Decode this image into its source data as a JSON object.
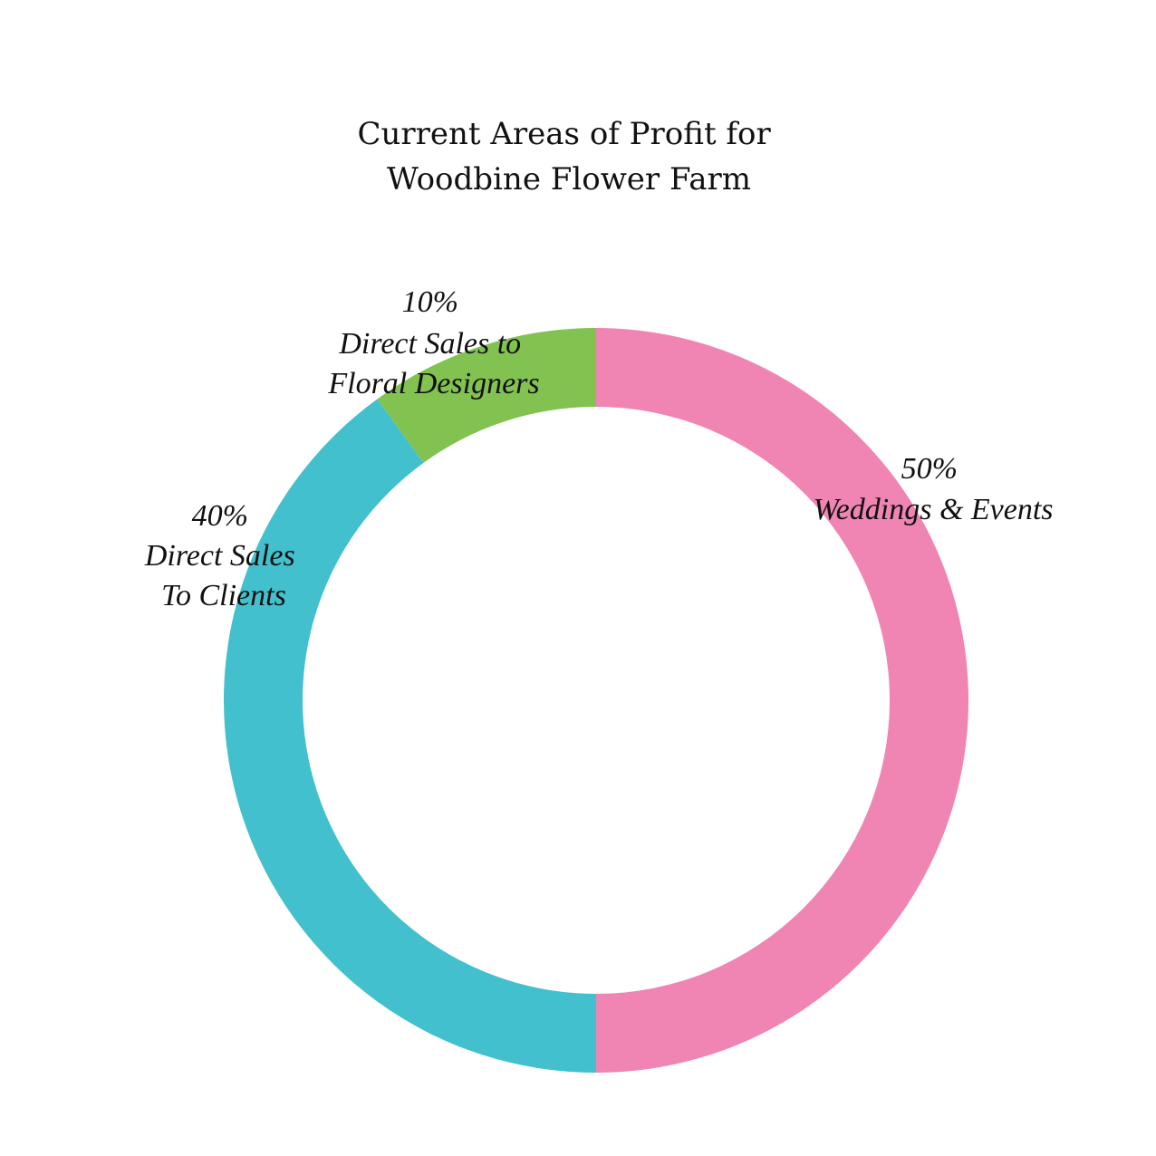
{
  "chart_data": {
    "type": "pie",
    "title": "Current Areas of Profit for Woodbine Flower Farm",
    "title_lines": [
      "Current Areas of Profit for",
      "Woodbine Flower Farm"
    ],
    "categories": [
      "Weddings & Events",
      "Direct Sales To Clients",
      "Direct Sales to Floral Designers"
    ],
    "values": [
      50,
      40,
      10
    ],
    "value_labels": [
      "50%",
      "40%",
      "10%"
    ],
    "label_lines": [
      [
        "Weddings & Events"
      ],
      [
        "Direct Sales",
        "To Clients"
      ],
      [
        "Direct Sales to",
        "Floral Designers"
      ]
    ],
    "colors": [
      "#f085b4",
      "#43c0cd",
      "#82c250"
    ],
    "donut": true,
    "start": "12 o'clock",
    "direction": "clockwise",
    "legend": "none"
  }
}
